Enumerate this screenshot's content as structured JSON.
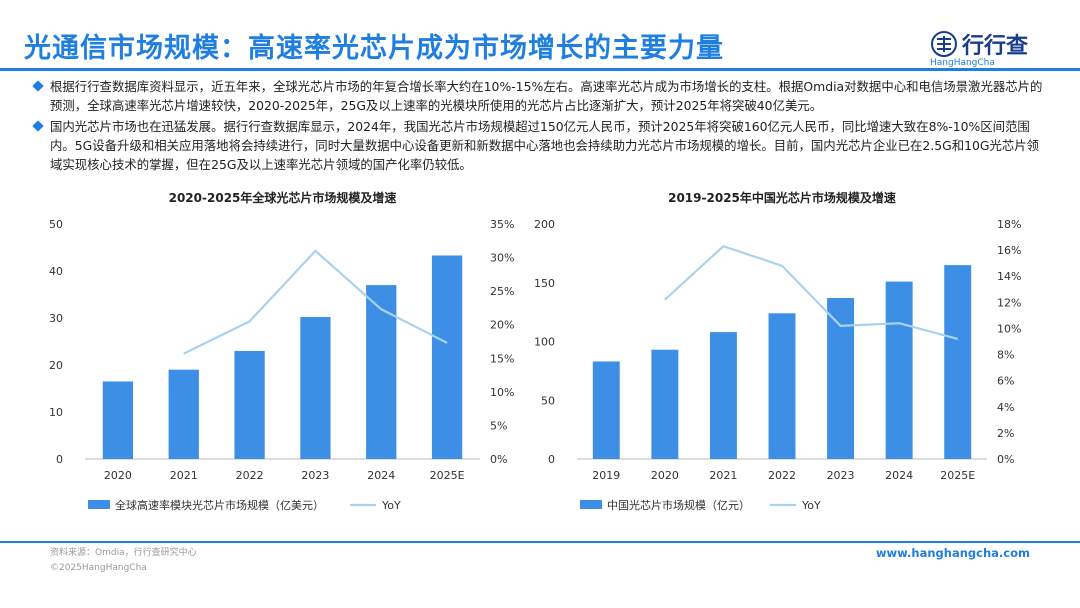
{
  "header": {
    "title": "光通信市场规模：高速率光芯片成为市场增长的主要力量",
    "logo_text": "行行查",
    "logo_sub": "HangHangCha"
  },
  "bullets": [
    "根据行行查数据库资料显示，近五年来，全球光芯片市场的年复合增长率大约在10%-15%左右。高速率光芯片成为市场增长的支柱。根据Omdia对数据中心和电信场景激光器芯片的预测，全球高速率光芯片增速较快，2020-2025年，25G及以上速率的光模块所使用的光芯片占比逐渐扩大，预计2025年将突破40亿美元。",
    "国内光芯片市场也在迅猛发展。据行行查数据库显示，2024年，我国光芯片市场规模超过150亿元人民币，预计2025年将突破160亿元人民币，同比增速大致在8%-10%区间范围内。5G设备升级和相关应用落地将会持续进行，同时大量数据中心设备更新和新数据中心落地也会持续助力光芯片市场规模的增长。目前，国内光芯片企业已在2.5G和10G光芯片领域实现核心技术的掌握，但在25G及以上速率光芯片领域的国产化率仍较低。"
  ],
  "footer": {
    "source": "资料来源：Omdia，行行查研究中心",
    "copyright": "©2025HangHangCha",
    "url": "www.hanghangcha.com"
  },
  "colors": {
    "accent": "#1f7fe0",
    "bar": "#3d8fe6",
    "line": "#a9d2ee"
  },
  "chart_data": [
    {
      "type": "bar",
      "title": "2020-2025年全球光芯片市场规模及增速",
      "categories": [
        "2020",
        "2021",
        "2022",
        "2023",
        "2024",
        "2025E"
      ],
      "series": [
        {
          "name": "全球高速率模块光芯片市场规模（亿美元）",
          "type": "bar",
          "axis": "left",
          "values": [
            16.5,
            19,
            23,
            30.2,
            37,
            43.3
          ]
        },
        {
          "name": "YoY",
          "type": "line",
          "axis": "right",
          "values": [
            null,
            0.157,
            0.205,
            0.31,
            0.223,
            0.173
          ]
        }
      ],
      "ylim_left": [
        0,
        50
      ],
      "yticks_left": [
        "0",
        "10",
        "20",
        "30",
        "40",
        "50"
      ],
      "ylim_right": [
        0,
        0.35
      ],
      "yticks_right": [
        "0%",
        "5%",
        "10%",
        "15%",
        "20%",
        "25%",
        "30%",
        "35%"
      ],
      "legend": "bottom"
    },
    {
      "type": "bar",
      "title": "2019-2025年中国光芯片市场规模及增速",
      "categories": [
        "2019",
        "2020",
        "2021",
        "2022",
        "2023",
        "2024",
        "2025E"
      ],
      "series": [
        {
          "name": "中国光芯片市场规模（亿元）",
          "type": "bar",
          "axis": "left",
          "values": [
            83,
            93,
            108,
            124,
            137,
            151,
            165
          ]
        },
        {
          "name": "YoY",
          "type": "line",
          "axis": "right",
          "values": [
            null,
            0.122,
            0.163,
            0.148,
            0.102,
            0.104,
            0.092
          ]
        }
      ],
      "ylim_left": [
        0,
        200
      ],
      "yticks_left": [
        "0",
        "50",
        "100",
        "150",
        "200"
      ],
      "ylim_right": [
        0,
        0.18
      ],
      "yticks_right": [
        "0%",
        "2%",
        "4%",
        "6%",
        "8%",
        "10%",
        "12%",
        "14%",
        "16%",
        "18%"
      ],
      "legend": "bottom"
    }
  ]
}
